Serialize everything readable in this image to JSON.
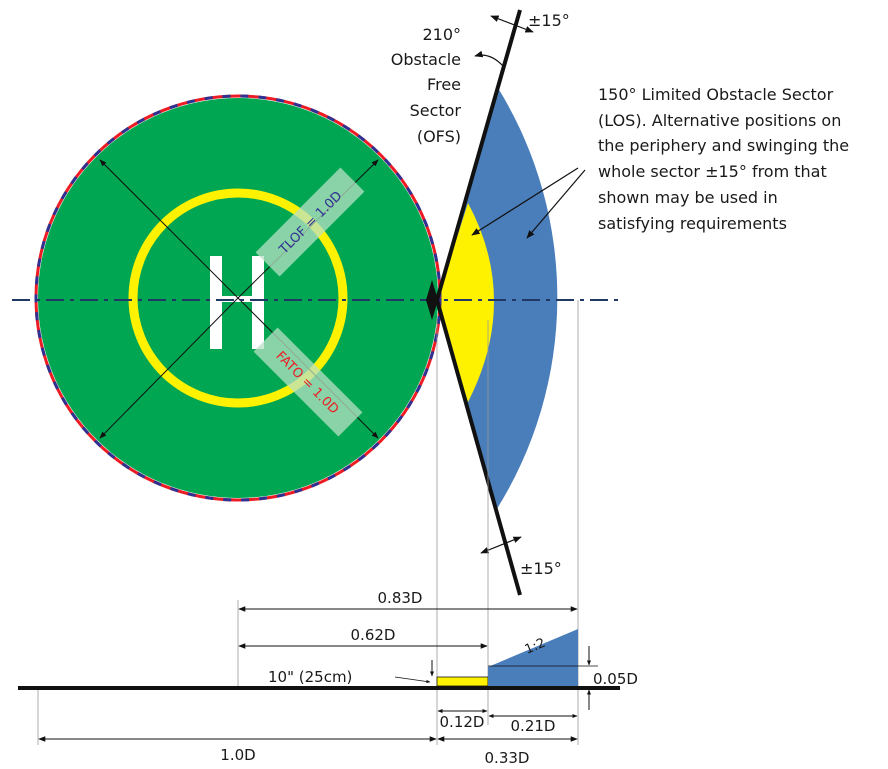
{
  "diagram": {
    "ofs_label": [
      "210°",
      "Obstacle",
      "Free",
      "Sector",
      "(OFS)"
    ],
    "los_label": [
      "150° Limited Obstacle Sector",
      "(LOS). Alternative positions on",
      "the periphery and swinging the",
      "whole sector ±15° from that",
      "shown may be used in",
      "satisfying requirements"
    ],
    "swing_top": "±15°",
    "swing_bottom": "±15°",
    "tlof_label": "TLOF = 1.0D",
    "fato_label": "FATO = 1.0D",
    "slope_label": "1:2",
    "dims": {
      "d083": "0.83D",
      "d062": "0.62D",
      "height_note": "10\" (25cm)",
      "d005": "0.05D",
      "d012": "0.12D",
      "d021": "0.21D",
      "d10": "1.0D",
      "d033": "0.33D"
    },
    "colors": {
      "pad_green": "#00a651",
      "ring_yellow": "#fff200",
      "los_blue": "#4a7ebb",
      "edge_red": "#ed1c24",
      "edge_blue": "#2e3192",
      "centerline": "#1f3864",
      "tlof_text": "#2e3192",
      "fato_text": "#ed1c24"
    }
  }
}
